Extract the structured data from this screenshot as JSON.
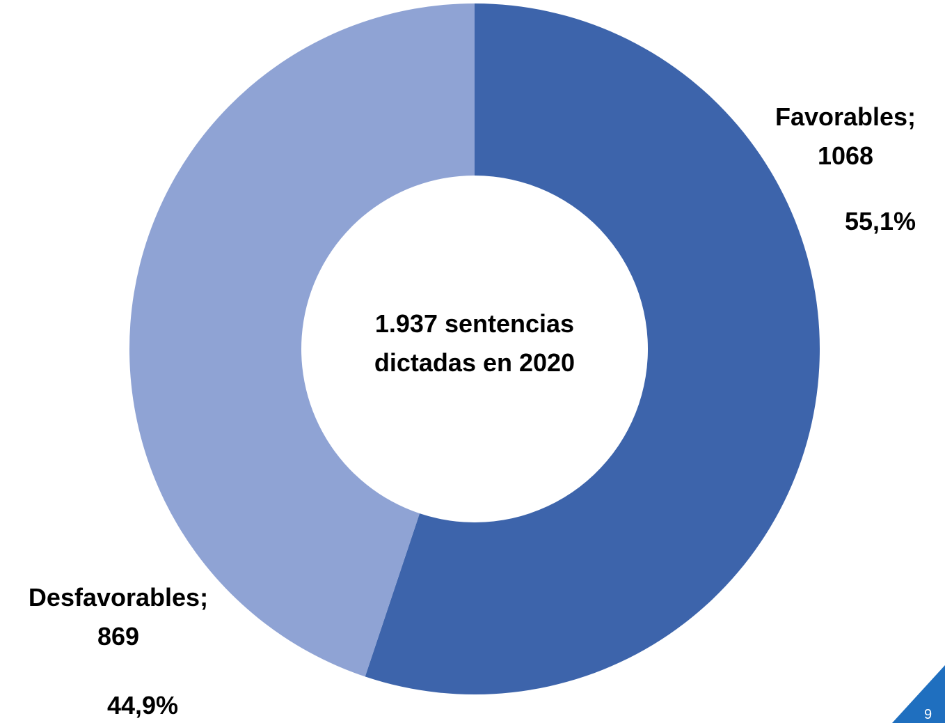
{
  "chart_data": {
    "type": "pie",
    "donut": true,
    "center_text": "1.937  sentencias\ndictadas en 2020",
    "total": 1937,
    "slices": [
      {
        "name": "Favorables",
        "value": 1068,
        "percent": 55.1,
        "value_label": "1068",
        "percent_label": "55,1%",
        "color": "#3d64ab"
      },
      {
        "name": "Desfavorables",
        "value": 869,
        "percent": 44.9,
        "value_label": "869",
        "percent_label": "44,9%",
        "color": "#8fa3d4"
      }
    ],
    "start_angle_deg": 0,
    "direction": "clockwise"
  },
  "slide": {
    "number": "9",
    "corner_color": "#1f6fbf"
  }
}
